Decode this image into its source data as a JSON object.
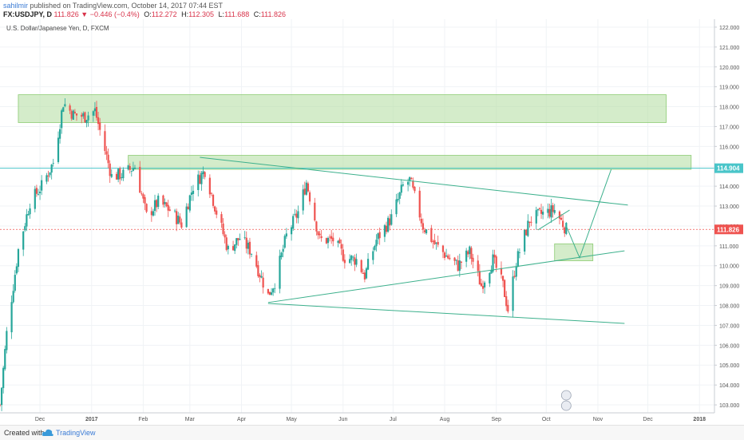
{
  "header": {
    "user": "sahilmir",
    "published_text": "published on TradingView.com, October 14, 2017 07:44 EST",
    "symbol": "FX:USDJPY, D",
    "last": "111.826",
    "change": "−0.446 (−0.4%)",
    "open_label": "O:",
    "open": "112.272",
    "high_label": "H:",
    "high": "112.305",
    "low_label": "L:",
    "low": "111.688",
    "close_label": "C:",
    "close": "111.826"
  },
  "chart_title": "U.S. Dollar/Japanese Yen, D, FXCM",
  "footer": {
    "created_with": "Created with",
    "brand": "TradingView"
  },
  "colors": {
    "up": "#26a69a",
    "down": "#ef5350",
    "zone": "#b7dfa6",
    "trendline": "#3cb08c",
    "price_line_current": "#ef5350",
    "price_line_mark": "#49c5c9"
  },
  "chart_data": {
    "type": "candlestick",
    "title": "U.S. Dollar/Japanese Yen, D, FXCM",
    "y_axis": {
      "range": [
        102.6,
        122.4
      ],
      "ticks": [
        "103.000",
        "104.000",
        "105.000",
        "106.000",
        "107.000",
        "108.000",
        "109.000",
        "110.000",
        "111.000",
        "112.000",
        "113.000",
        "114.000",
        "115.000",
        "116.000",
        "117.000",
        "118.000",
        "119.000",
        "120.000",
        "121.000",
        "122.000"
      ]
    },
    "x_axis": {
      "range": [
        "2016-11-07",
        "2018-01-10"
      ],
      "ticks": [
        {
          "label": "Dec",
          "date": "2016-12-01"
        },
        {
          "label": "2017",
          "date": "2017-01-01"
        },
        {
          "label": "Feb",
          "date": "2017-02-01"
        },
        {
          "label": "Mar",
          "date": "2017-03-01"
        },
        {
          "label": "Apr",
          "date": "2017-04-01"
        },
        {
          "label": "May",
          "date": "2017-05-01"
        },
        {
          "label": "Jun",
          "date": "2017-06-01"
        },
        {
          "label": "Jul",
          "date": "2017-07-01"
        },
        {
          "label": "Aug",
          "date": "2017-08-01"
        },
        {
          "label": "Sep",
          "date": "2017-09-01"
        },
        {
          "label": "Oct",
          "date": "2017-10-01"
        },
        {
          "label": "Nov",
          "date": "2017-11-01"
        },
        {
          "label": "Dec",
          "date": "2017-12-01"
        },
        {
          "label": "2018",
          "date": "2018-01-01"
        }
      ]
    },
    "close_path": [
      [
        "2016-11-07",
        103.0
      ],
      [
        "2016-11-11",
        106.6
      ],
      [
        "2016-11-18",
        110.8
      ],
      [
        "2016-11-25",
        113.2
      ],
      [
        "2016-12-02",
        114.0
      ],
      [
        "2016-12-09",
        115.2
      ],
      [
        "2016-12-15",
        118.2
      ],
      [
        "2016-12-21",
        117.6
      ],
      [
        "2016-12-28",
        117.5
      ],
      [
        "2017-01-03",
        117.8
      ],
      [
        "2017-01-06",
        116.8
      ],
      [
        "2017-01-13",
        114.5
      ],
      [
        "2017-01-20",
        114.6
      ],
      [
        "2017-01-27",
        115.0
      ],
      [
        "2017-02-03",
        112.5
      ],
      [
        "2017-02-10",
        113.2
      ],
      [
        "2017-02-17",
        112.8
      ],
      [
        "2017-02-24",
        112.1
      ],
      [
        "2017-03-03",
        114.0
      ],
      [
        "2017-03-10",
        114.8
      ],
      [
        "2017-03-17",
        112.7
      ],
      [
        "2017-03-24",
        110.8
      ],
      [
        "2017-03-31",
        111.4
      ],
      [
        "2017-04-07",
        110.7
      ],
      [
        "2017-04-17",
        108.5
      ],
      [
        "2017-04-21",
        109.2
      ],
      [
        "2017-04-28",
        111.5
      ],
      [
        "2017-05-05",
        112.7
      ],
      [
        "2017-05-10",
        114.2
      ],
      [
        "2017-05-18",
        111.3
      ],
      [
        "2017-05-26",
        111.3
      ],
      [
        "2017-06-02",
        110.4
      ],
      [
        "2017-06-09",
        110.3
      ],
      [
        "2017-06-14",
        109.5
      ],
      [
        "2017-06-21",
        111.3
      ],
      [
        "2017-06-30",
        112.4
      ],
      [
        "2017-07-07",
        114.0
      ],
      [
        "2017-07-11",
        114.3
      ],
      [
        "2017-07-19",
        112.0
      ],
      [
        "2017-07-26",
        111.1
      ],
      [
        "2017-08-02",
        110.5
      ],
      [
        "2017-08-09",
        110.0
      ],
      [
        "2017-08-16",
        110.7
      ],
      [
        "2017-08-23",
        109.0
      ],
      [
        "2017-08-30",
        110.3
      ],
      [
        "2017-09-05",
        109.0
      ],
      [
        "2017-09-08",
        107.8
      ],
      [
        "2017-09-13",
        110.2
      ],
      [
        "2017-09-21",
        112.3
      ],
      [
        "2017-09-28",
        112.6
      ],
      [
        "2017-10-06",
        112.8
      ],
      [
        "2017-10-13",
        111.826
      ]
    ],
    "series": [
      {
        "name": "FX:USDJPY, D",
        "values_ref": "close_path"
      }
    ],
    "annotations": {
      "zones": [
        {
          "x0": "2016-11-18",
          "x1": "2017-12-12",
          "y0": 117.2,
          "y1": 118.6
        },
        {
          "x0": "2017-01-23",
          "x1": "2017-12-27",
          "y0": 114.85,
          "y1": 115.55
        },
        {
          "x0": "2017-10-06",
          "x1": "2017-10-29",
          "y0": 110.25,
          "y1": 111.1
        }
      ],
      "trendlines": [
        {
          "p1": [
            "2017-03-07",
            115.45
          ],
          "p2": [
            "2017-11-19",
            113.05
          ]
        },
        {
          "p1": [
            "2017-04-17",
            108.15
          ],
          "p2": [
            "2017-11-17",
            110.75
          ]
        },
        {
          "p1": [
            "2017-04-17",
            108.1
          ],
          "p2": [
            "2017-11-17",
            107.1
          ]
        },
        {
          "p1": [
            "2017-09-26",
            111.8
          ],
          "p2": [
            "2017-10-15",
            112.8
          ]
        }
      ],
      "projection": [
        [
          "2017-10-13",
          112.0
        ],
        [
          "2017-10-21",
          110.4
        ],
        [
          "2017-11-09",
          114.85
        ]
      ],
      "price_labels": [
        {
          "value": "114.904",
          "color": "#49c5c9",
          "price": 114.904
        },
        {
          "value": "111.826",
          "color": "#ef5350",
          "price": 111.826
        }
      ]
    }
  }
}
